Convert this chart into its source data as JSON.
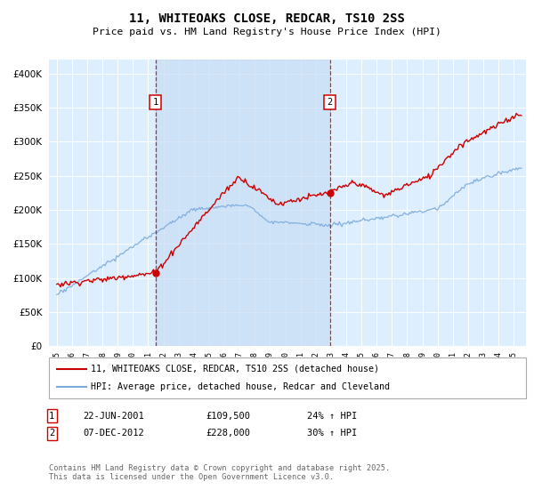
{
  "title": "11, WHITEOAKS CLOSE, REDCAR, TS10 2SS",
  "subtitle": "Price paid vs. HM Land Registry's House Price Index (HPI)",
  "yticks": [
    0,
    50000,
    100000,
    150000,
    200000,
    250000,
    300000,
    350000,
    400000
  ],
  "ylim": [
    0,
    420000
  ],
  "legend_line1": "11, WHITEOAKS CLOSE, REDCAR, TS10 2SS (detached house)",
  "legend_line2": "HPI: Average price, detached house, Redcar and Cleveland",
  "sale1_date": "22-JUN-2001",
  "sale1_price": "£109,500",
  "sale1_hpi": "24% ↑ HPI",
  "sale2_date": "07-DEC-2012",
  "sale2_price": "£228,000",
  "sale2_hpi": "30% ↑ HPI",
  "footnote": "Contains HM Land Registry data © Crown copyright and database right 2025.\nThis data is licensed under the Open Government Licence v3.0.",
  "line_color_red": "#cc0000",
  "line_color_blue": "#7aaadd",
  "bg_color": "#ddeeff",
  "shade_color": "#c8ddf5",
  "vline_color": "#cc0000",
  "sale1_x": 2001.47,
  "sale2_x": 2012.92,
  "xlim_left": 1994.5,
  "xlim_right": 2025.8
}
